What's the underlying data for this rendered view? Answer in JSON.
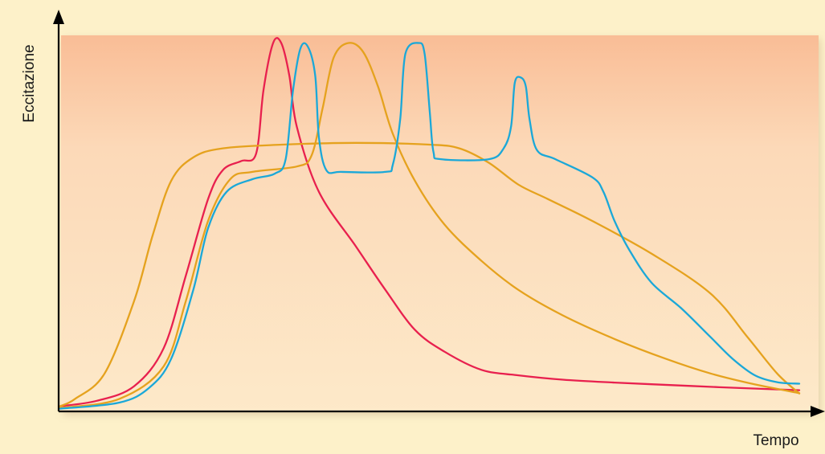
{
  "chart_data": {
    "type": "line",
    "title": "",
    "xlabel": "Tempo",
    "ylabel": "Eccitazione",
    "xlim": [
      0,
      100
    ],
    "ylim": [
      0,
      100
    ],
    "grid": false,
    "legend": "none",
    "colors": {
      "background_top": "#f9bd96",
      "background_bottom": "#fde9c9",
      "page": "#fdf1c9",
      "axis": "#000000"
    },
    "series": [
      {
        "color": "#e8204e",
        "points": [
          [
            0,
            1
          ],
          [
            5,
            2.5
          ],
          [
            10,
            6.5
          ],
          [
            14,
            17
          ],
          [
            17,
            37
          ],
          [
            20,
            58
          ],
          [
            22,
            66
          ],
          [
            24.5,
            68.5
          ],
          [
            26.5,
            70.5
          ],
          [
            27.5,
            88
          ],
          [
            28.8,
            101
          ],
          [
            29.9,
            101
          ],
          [
            31,
            92
          ],
          [
            32,
            78
          ],
          [
            35,
            60
          ],
          [
            40,
            45
          ],
          [
            44,
            33
          ],
          [
            48,
            22
          ],
          [
            52,
            16
          ],
          [
            57,
            11
          ],
          [
            62,
            9.5
          ],
          [
            68,
            8.3
          ],
          [
            75,
            7.5
          ],
          [
            85,
            6.6
          ],
          [
            92,
            6
          ],
          [
            100,
            5.4
          ]
        ]
      },
      {
        "color": "#e5a21e",
        "points": [
          [
            0,
            1
          ],
          [
            2,
            3
          ],
          [
            6,
            10
          ],
          [
            10,
            30
          ],
          [
            12.5,
            48
          ],
          [
            15,
            63
          ],
          [
            18,
            69.5
          ],
          [
            22,
            72
          ],
          [
            30,
            73
          ],
          [
            40,
            73.5
          ],
          [
            50,
            73
          ],
          [
            54,
            72
          ],
          [
            58,
            68
          ],
          [
            62,
            62
          ],
          [
            66,
            58
          ],
          [
            72,
            52
          ],
          [
            80,
            43
          ],
          [
            88,
            32
          ],
          [
            93,
            20
          ],
          [
            97,
            10
          ],
          [
            100,
            4.5
          ]
        ]
      },
      {
        "color": "#e5a21e",
        "points": [
          [
            0,
            0.5
          ],
          [
            8,
            3
          ],
          [
            14,
            12
          ],
          [
            17,
            30
          ],
          [
            20,
            52
          ],
          [
            23,
            63.5
          ],
          [
            26,
            65.5
          ],
          [
            32,
            67
          ],
          [
            34,
            70
          ],
          [
            35.5,
            83
          ],
          [
            37,
            97
          ],
          [
            39,
            101
          ],
          [
            41,
            98.5
          ],
          [
            43,
            89
          ],
          [
            45,
            76
          ],
          [
            48,
            63
          ],
          [
            52,
            51
          ],
          [
            57,
            41
          ],
          [
            62,
            33
          ],
          [
            68,
            26
          ],
          [
            75,
            19.5
          ],
          [
            82,
            14
          ],
          [
            88,
            10
          ],
          [
            94,
            7
          ],
          [
            100,
            4.6
          ]
        ]
      },
      {
        "color": "#1ba8d8",
        "points": [
          [
            0,
            0.3
          ],
          [
            8,
            2
          ],
          [
            12,
            6
          ],
          [
            15,
            14
          ],
          [
            18,
            33
          ],
          [
            20,
            50
          ],
          [
            22.5,
            60
          ],
          [
            26,
            63.5
          ],
          [
            29,
            65
          ],
          [
            30.5,
            69
          ],
          [
            31.5,
            88
          ],
          [
            32.5,
            99.5
          ],
          [
            33.5,
            100
          ],
          [
            34.5,
            92
          ],
          [
            35,
            75
          ],
          [
            36,
            66
          ],
          [
            38,
            65.5
          ],
          [
            44,
            65.5
          ],
          [
            45,
            67.5
          ],
          [
            46,
            80
          ],
          [
            46.7,
            98
          ],
          [
            48.5,
            101
          ],
          [
            49.3,
            98
          ],
          [
            50,
            82
          ],
          [
            50.5,
            71
          ],
          [
            51.5,
            69
          ],
          [
            58,
            69
          ],
          [
            60,
            72
          ],
          [
            61,
            78
          ],
          [
            61.5,
            90
          ],
          [
            62.3,
            91.5
          ],
          [
            63,
            89
          ],
          [
            63.5,
            80
          ],
          [
            64.5,
            71.5
          ],
          [
            67,
            69
          ],
          [
            72,
            64
          ],
          [
            73.5,
            60
          ],
          [
            75,
            52
          ],
          [
            77,
            44
          ],
          [
            80,
            35
          ],
          [
            84,
            28
          ],
          [
            88,
            20
          ],
          [
            91,
            14
          ],
          [
            94,
            9.5
          ],
          [
            97,
            7.6
          ],
          [
            100,
            7.2
          ]
        ]
      }
    ]
  }
}
